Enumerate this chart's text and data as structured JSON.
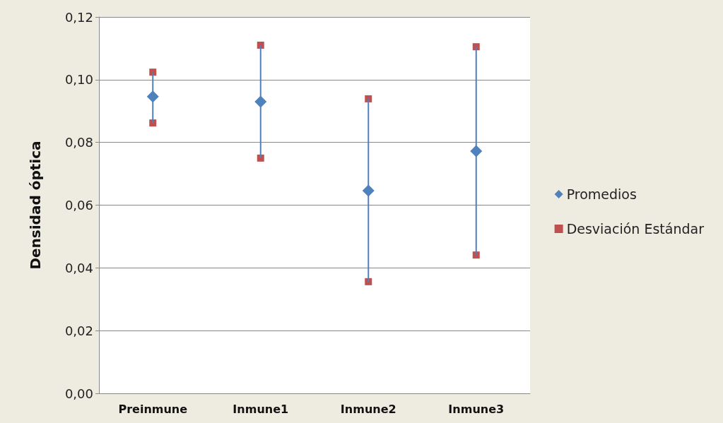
{
  "chart_data": {
    "type": "scatter",
    "ylabel": "Densidad óptica",
    "categories": [
      "Preinmune",
      "Inmune1",
      "Inmune2",
      "Inmune3"
    ],
    "series": [
      {
        "name": "Promedios",
        "color": "#4f81bd",
        "marker": "diamond",
        "values": [
          0.0946,
          0.093,
          0.0646,
          0.0772
        ],
        "errors": [
          [
            0.0862,
            0.1024
          ],
          [
            0.075,
            0.111
          ],
          [
            0.0356,
            0.0939
          ],
          [
            0.0441,
            0.1105
          ]
        ]
      },
      {
        "name": "Desviación Estándar",
        "color": "#c0504d",
        "marker": "square",
        "x": [
          "Preinmune",
          "Preinmune",
          "Inmune1",
          "Inmune1",
          "Inmune2",
          "Inmune2",
          "Inmune3",
          "Inmune3"
        ],
        "values": [
          0.1024,
          0.0862,
          0.111,
          0.075,
          0.0939,
          0.0356,
          0.1105,
          0.0441
        ]
      }
    ],
    "ylim": [
      0,
      0.12
    ],
    "yticks": [
      {
        "value": 0,
        "label": "0,00"
      },
      {
        "value": 0.02,
        "label": "0,02"
      },
      {
        "value": 0.04,
        "label": "0,04"
      },
      {
        "value": 0.06,
        "label": "0,06"
      },
      {
        "value": 0.08,
        "label": "0,08"
      },
      {
        "value": 0.1,
        "label": "0,10"
      },
      {
        "value": 0.12,
        "label": "0,12"
      }
    ],
    "grid": "y",
    "legend": "right"
  }
}
